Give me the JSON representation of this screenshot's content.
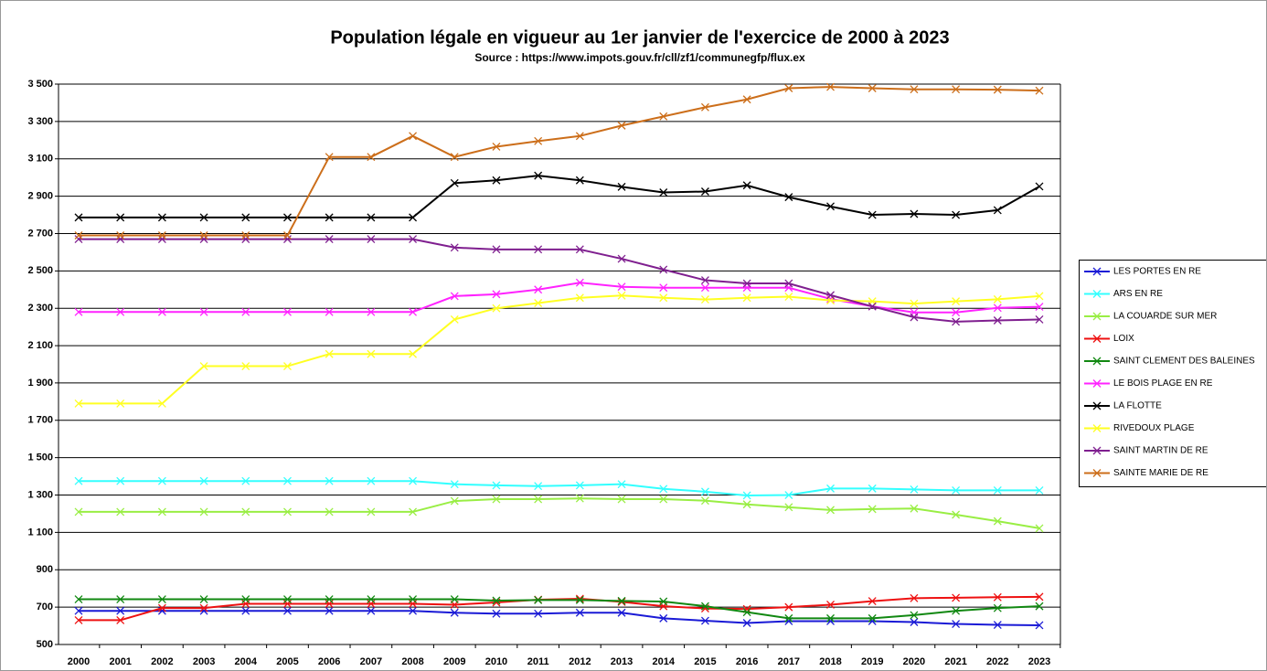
{
  "chart_data": {
    "type": "line",
    "title": "Population légale en vigueur au 1er janvier de l'exercice de 2000 à 2023",
    "subtitle": "Source : https://www.impots.gouv.fr/cll/zf1/communegfp/flux.ex",
    "categories": [
      "2000",
      "2001",
      "2002",
      "2003",
      "2004",
      "2005",
      "2006",
      "2007",
      "2008",
      "2009",
      "2010",
      "2011",
      "2012",
      "2013",
      "2014",
      "2015",
      "2016",
      "2017",
      "2018",
      "2019",
      "2020",
      "2021",
      "2022",
      "2023"
    ],
    "ylim": [
      500,
      3500
    ],
    "yticks": [
      500,
      700,
      900,
      {
        "value": 1100,
        "label": "1 100"
      },
      {
        "value": 1300,
        "label": "1 300"
      },
      {
        "value": 1500,
        "label": "1 500"
      },
      {
        "value": 1700,
        "label": "1 700"
      },
      {
        "value": 1900,
        "label": "1 900"
      },
      {
        "value": 2100,
        "label": "2 100"
      },
      {
        "value": 2300,
        "label": "2 300"
      },
      {
        "value": 2500,
        "label": "2 500"
      },
      {
        "value": 2700,
        "label": "2 700"
      },
      {
        "value": 2900,
        "label": "2 900"
      },
      {
        "value": 3100,
        "label": "3 100"
      },
      {
        "value": 3300,
        "label": "3 300"
      },
      {
        "value": 3500,
        "label": "3 500"
      }
    ],
    "grid": true,
    "legend": "right",
    "series": [
      {
        "name": "LES PORTES EN RE",
        "color": "#1a1ad6",
        "values": [
          680,
          680,
          680,
          680,
          680,
          680,
          680,
          680,
          680,
          670,
          665,
          665,
          670,
          670,
          640,
          627,
          615,
          625,
          625,
          625,
          620,
          610,
          605,
          603
        ]
      },
      {
        "name": "ARS EN RE",
        "color": "#33ffff",
        "values": [
          1375,
          1375,
          1375,
          1375,
          1375,
          1375,
          1375,
          1375,
          1375,
          1358,
          1352,
          1348,
          1352,
          1358,
          1333,
          1318,
          1298,
          1300,
          1335,
          1335,
          1330,
          1325,
          1325,
          1325
        ]
      },
      {
        "name": "LA COUARDE SUR MER",
        "color": "#99ee44",
        "values": [
          1210,
          1210,
          1210,
          1210,
          1210,
          1210,
          1210,
          1210,
          1210,
          1268,
          1278,
          1278,
          1282,
          1278,
          1278,
          1270,
          1250,
          1235,
          1220,
          1225,
          1228,
          1195,
          1160,
          1122
        ]
      },
      {
        "name": "LOIX",
        "color": "#ee1111",
        "values": [
          630,
          630,
          695,
          695,
          718,
          718,
          718,
          718,
          718,
          713,
          725,
          740,
          745,
          728,
          705,
          693,
          690,
          700,
          713,
          732,
          748,
          750,
          753,
          755
        ]
      },
      {
        "name": "SAINT CLEMENT DES BALEINES",
        "color": "#118811",
        "values": [
          742,
          742,
          742,
          742,
          742,
          742,
          742,
          742,
          742,
          742,
          735,
          738,
          738,
          733,
          730,
          705,
          673,
          640,
          640,
          640,
          657,
          680,
          695,
          705
        ]
      },
      {
        "name": "LE BOIS PLAGE EN RE",
        "color": "#ff22ff",
        "values": [
          2280,
          2280,
          2280,
          2280,
          2280,
          2280,
          2280,
          2280,
          2280,
          2365,
          2375,
          2400,
          2437,
          2415,
          2410,
          2410,
          2410,
          2410,
          2350,
          2310,
          2278,
          2278,
          2302,
          2308
        ]
      },
      {
        "name": "LA FLOTTE",
        "color": "#000000",
        "values": [
          2786,
          2786,
          2786,
          2786,
          2786,
          2786,
          2786,
          2786,
          2786,
          2970,
          2985,
          3010,
          2985,
          2950,
          2920,
          2925,
          2958,
          2895,
          2845,
          2800,
          2805,
          2800,
          2825,
          2952
        ]
      },
      {
        "name": "RIVEDOUX PLAGE",
        "color": "#ffff22",
        "values": [
          1790,
          1790,
          1790,
          1990,
          1990,
          1990,
          2055,
          2055,
          2055,
          2240,
          2300,
          2328,
          2356,
          2368,
          2356,
          2347,
          2356,
          2362,
          2342,
          2337,
          2325,
          2337,
          2348,
          2365
        ]
      },
      {
        "name": "SAINT MARTIN DE RE",
        "color": "#7f1f8f",
        "values": [
          2670,
          2670,
          2670,
          2670,
          2670,
          2670,
          2670,
          2670,
          2670,
          2625,
          2615,
          2615,
          2615,
          2565,
          2507,
          2450,
          2433,
          2433,
          2370,
          2310,
          2252,
          2228,
          2235,
          2240
        ]
      },
      {
        "name": "SAINTE MARIE DE RE",
        "color": "#cc6e1a",
        "values": [
          2690,
          2690,
          2690,
          2690,
          2690,
          2690,
          3110,
          3110,
          3222,
          3110,
          3165,
          3195,
          3222,
          3278,
          3327,
          3376,
          3418,
          3478,
          3485,
          3478,
          3472,
          3472,
          3470,
          3465
        ]
      }
    ]
  }
}
